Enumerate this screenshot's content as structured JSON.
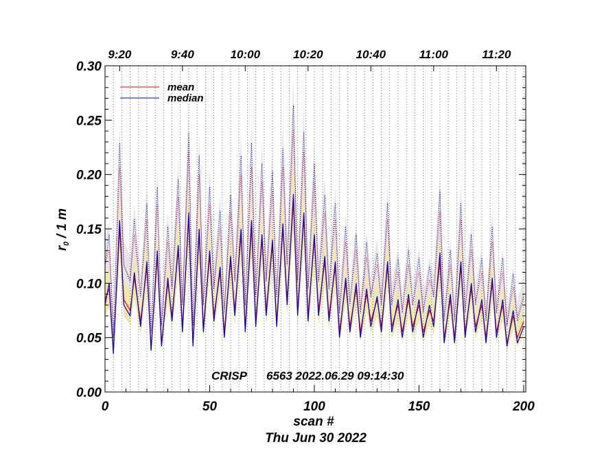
{
  "chart_data": {
    "type": "line",
    "xlabel": "scan #",
    "ylabel_main": "r",
    "ylabel_sub": "0",
    "ylabel_rest": " / 1 m",
    "subtitle": "Thu Jun 30 2022",
    "annotation_instrument": "CRISP",
    "annotation_info": "6563 2022.06.29 09:14:30",
    "xlim": [
      0,
      201
    ],
    "ylim": [
      0,
      0.3
    ],
    "x_ticks": [
      0,
      50,
      100,
      150,
      200
    ],
    "x_tick_labels": [
      "0",
      "50",
      "100",
      "150",
      "200"
    ],
    "y_ticks": [
      0.0,
      0.05,
      0.1,
      0.15,
      0.2,
      0.25,
      0.3
    ],
    "y_tick_labels": [
      "0.00",
      "0.05",
      "0.10",
      "0.15",
      "0.20",
      "0.25",
      "0.30"
    ],
    "top_axis": {
      "labels": [
        "9:20",
        "9:40",
        "10:00",
        "10:20",
        "10:40",
        "11:00",
        "11:20"
      ],
      "scan_positions": [
        7,
        37,
        67,
        97,
        127,
        157,
        187
      ]
    },
    "legend_position": "top-left",
    "grid": "vertical dotted lines every 4 scans",
    "series": [
      {
        "name": "mean",
        "color": "#ff0000",
        "x": [
          0,
          2,
          4,
          7,
          9,
          12,
          14,
          17,
          20,
          22,
          25,
          27,
          30,
          32,
          35,
          37,
          40,
          42,
          45,
          47,
          50,
          52,
          55,
          57,
          60,
          62,
          65,
          67,
          70,
          72,
          75,
          77,
          80,
          82,
          85,
          87,
          90,
          92,
          95,
          97,
          100,
          102,
          105,
          107,
          110,
          112,
          115,
          117,
          120,
          122,
          125,
          127,
          130,
          132,
          135,
          137,
          140,
          142,
          145,
          147,
          150,
          152,
          155,
          157,
          160,
          162,
          165,
          167,
          170,
          172,
          175,
          177,
          180,
          182,
          185,
          187,
          190,
          192,
          195,
          197,
          200
        ],
        "y": [
          0.085,
          0.095,
          0.038,
          0.15,
          0.085,
          0.075,
          0.105,
          0.065,
          0.115,
          0.04,
          0.125,
          0.045,
          0.1,
          0.07,
          0.13,
          0.06,
          0.16,
          0.045,
          0.145,
          0.06,
          0.125,
          0.07,
          0.11,
          0.055,
          0.12,
          0.075,
          0.145,
          0.06,
          0.15,
          0.065,
          0.14,
          0.075,
          0.135,
          0.065,
          0.15,
          0.085,
          0.175,
          0.075,
          0.16,
          0.07,
          0.14,
          0.075,
          0.12,
          0.07,
          0.115,
          0.055,
          0.1,
          0.06,
          0.095,
          0.055,
          0.09,
          0.065,
          0.085,
          0.06,
          0.115,
          0.06,
          0.08,
          0.055,
          0.085,
          0.06,
          0.08,
          0.055,
          0.075,
          0.065,
          0.12,
          0.05,
          0.085,
          0.05,
          0.115,
          0.055,
          0.095,
          0.06,
          0.08,
          0.05,
          0.1,
          0.055,
          0.08,
          0.045,
          0.07,
          0.05,
          0.065
        ]
      },
      {
        "name": "median",
        "color": "#0000cc",
        "x": [
          0,
          2,
          4,
          7,
          9,
          12,
          14,
          17,
          20,
          22,
          25,
          27,
          30,
          32,
          35,
          37,
          40,
          42,
          45,
          47,
          50,
          52,
          55,
          57,
          60,
          62,
          65,
          67,
          70,
          72,
          75,
          77,
          80,
          82,
          85,
          87,
          90,
          92,
          95,
          97,
          100,
          102,
          105,
          107,
          110,
          112,
          115,
          117,
          120,
          122,
          125,
          127,
          130,
          132,
          135,
          137,
          140,
          142,
          145,
          147,
          150,
          152,
          155,
          157,
          160,
          162,
          165,
          167,
          170,
          172,
          175,
          177,
          180,
          182,
          185,
          187,
          190,
          192,
          195,
          197,
          200
        ],
        "y": [
          0.08,
          0.1,
          0.035,
          0.158,
          0.08,
          0.07,
          0.11,
          0.06,
          0.12,
          0.038,
          0.13,
          0.042,
          0.105,
          0.065,
          0.135,
          0.055,
          0.165,
          0.042,
          0.15,
          0.055,
          0.13,
          0.065,
          0.115,
          0.05,
          0.125,
          0.07,
          0.15,
          0.055,
          0.158,
          0.06,
          0.145,
          0.07,
          0.14,
          0.06,
          0.155,
          0.08,
          0.182,
          0.07,
          0.165,
          0.065,
          0.145,
          0.07,
          0.125,
          0.065,
          0.12,
          0.05,
          0.105,
          0.055,
          0.1,
          0.05,
          0.095,
          0.06,
          0.088,
          0.055,
          0.12,
          0.055,
          0.085,
          0.05,
          0.09,
          0.055,
          0.085,
          0.05,
          0.08,
          0.06,
          0.128,
          0.045,
          0.09,
          0.045,
          0.12,
          0.05,
          0.1,
          0.055,
          0.085,
          0.045,
          0.105,
          0.05,
          0.085,
          0.042,
          0.075,
          0.045,
          0.06
        ]
      }
    ]
  }
}
